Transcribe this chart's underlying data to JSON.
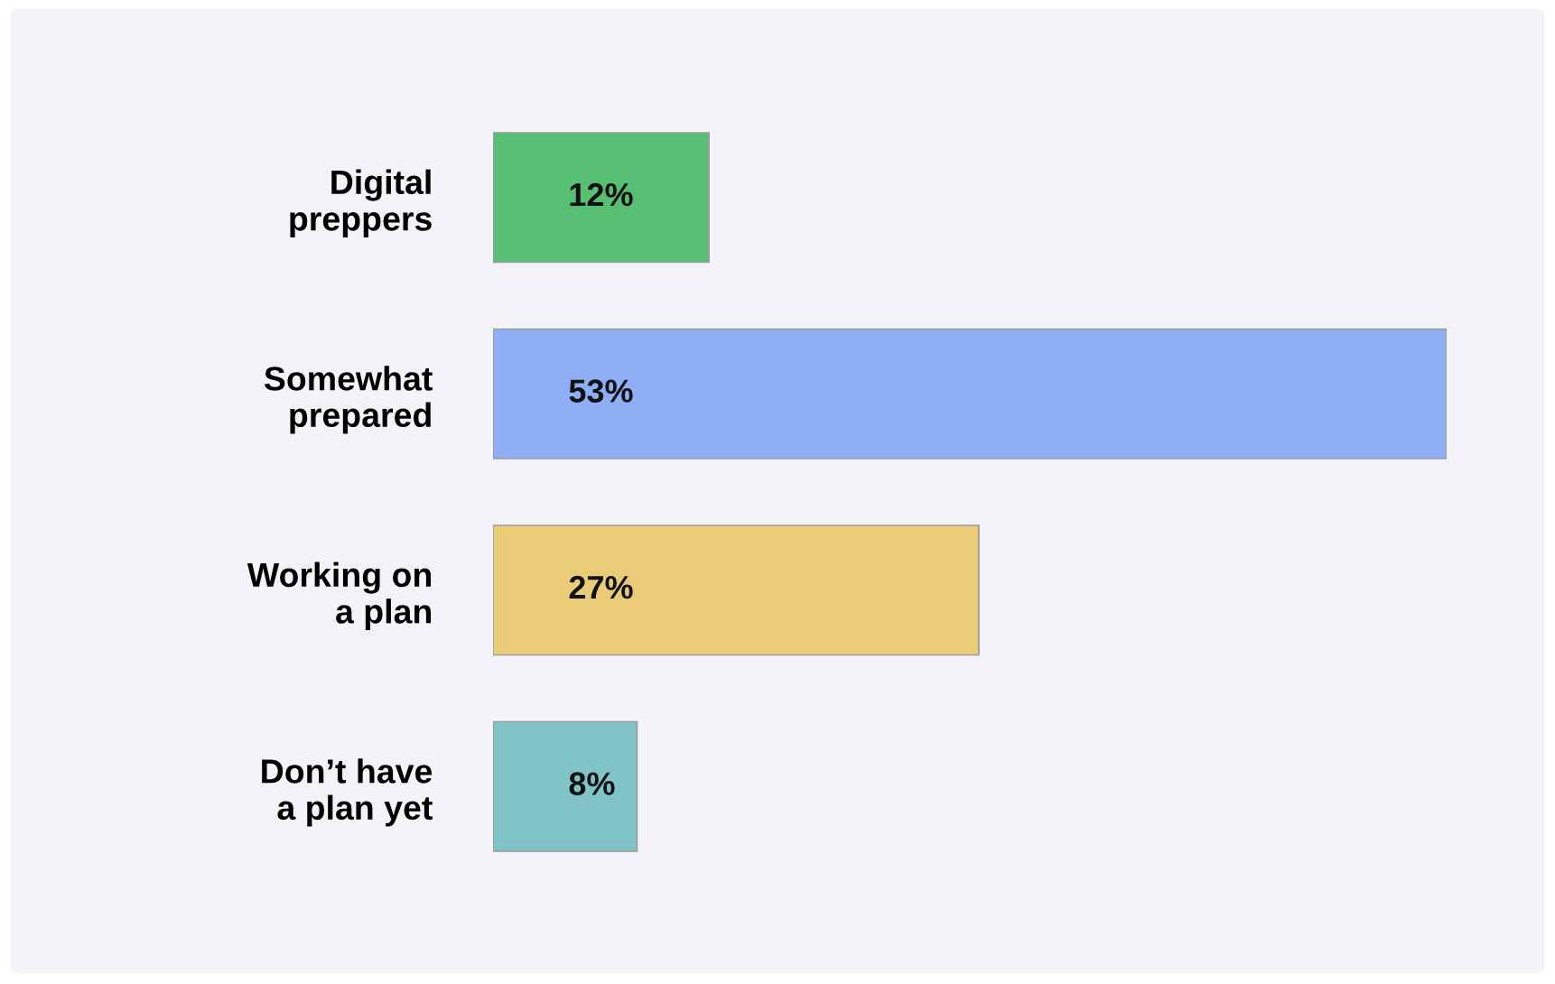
{
  "chart_data": {
    "type": "bar",
    "orientation": "horizontal",
    "categories": [
      "Digital\npreppers",
      "Somewhat\nprepared",
      "Working on\na plan",
      "Don’t have\na plan yet"
    ],
    "values": [
      12,
      53,
      27,
      8
    ],
    "colors": [
      "#56bf73",
      "#8eaef5",
      "#eacc78",
      "#80c4c8"
    ],
    "value_labels": [
      "12%",
      "53%",
      "27%",
      "8%"
    ],
    "tick_labels": "y"
  }
}
